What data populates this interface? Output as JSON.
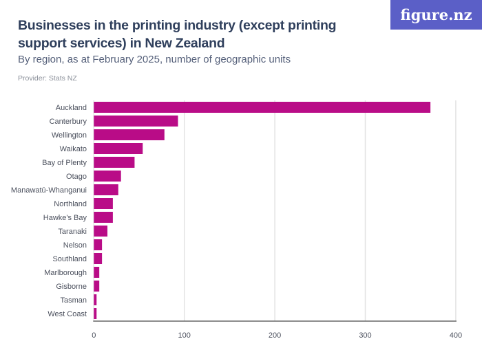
{
  "header": {
    "title": "Businesses in the printing industry (except printing support services) in New Zealand",
    "subtitle": "By region, as at February 2025, number of geographic units",
    "provider": "Provider: Stats NZ",
    "logo": "figure.nz"
  },
  "colors": {
    "bar": "#b90c87",
    "logo": "#5b5fc7"
  },
  "chart_data": {
    "type": "bar",
    "orientation": "horizontal",
    "title": "Businesses in the printing industry (except printing support services) in New Zealand",
    "categories": [
      "Auckland",
      "Canterbury",
      "Wellington",
      "Waikato",
      "Bay of Plenty",
      "Otago",
      "Manawatū-Whanganui",
      "Northland",
      "Hawke's Bay",
      "Taranaki",
      "Nelson",
      "Southland",
      "Marlborough",
      "Gisborne",
      "Tasman",
      "West Coast"
    ],
    "values": [
      372,
      93,
      78,
      54,
      45,
      30,
      27,
      21,
      21,
      15,
      9,
      9,
      6,
      6,
      3,
      3
    ],
    "xlim": [
      0,
      400
    ],
    "xticks": [
      0,
      100,
      200,
      300,
      400
    ],
    "grid": true,
    "xlabel": "",
    "ylabel": ""
  }
}
